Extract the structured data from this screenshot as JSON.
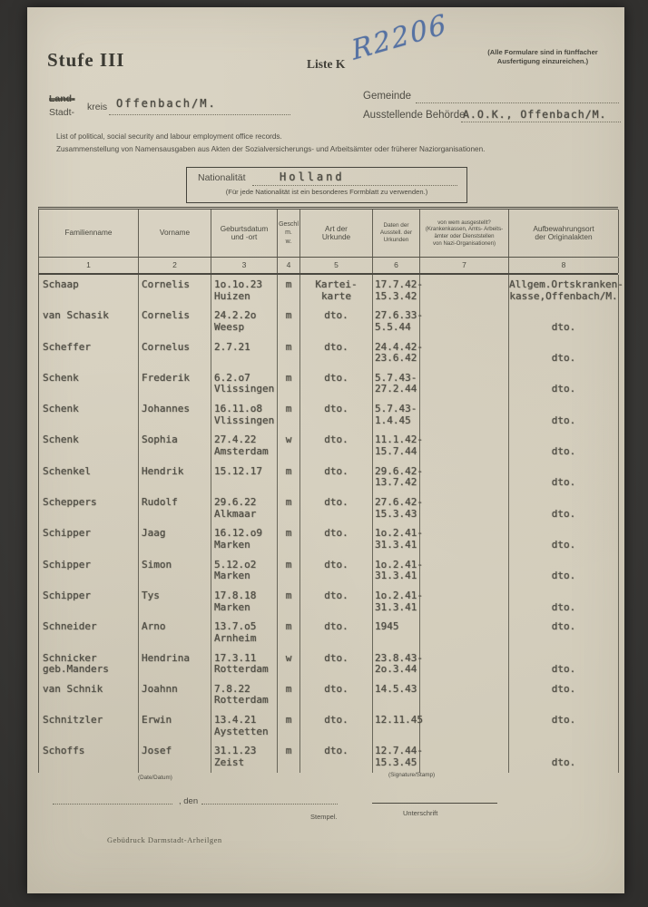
{
  "page": {
    "stufe": "Stufe III",
    "liste": "Liste K",
    "handwritten": "R2206",
    "note_top_right": "(Alle Formulare sind in fünffacher\nAusfertigung einzureichen.)"
  },
  "form": {
    "land_label": "Land-",
    "stadt_label": "Stadt-",
    "kreis_label": "kreis",
    "kreis_value": "Offenbach/M.",
    "gemeinde_label": "Gemeinde",
    "behoerde_label": "Ausstellende Behörde",
    "behoerde_value": "A.O.K., Offenbach/M.",
    "desc_en": "List of political, social security and labour employment office records.",
    "desc_de": "Zusammenstellung von Namensausgaben aus Akten der Sozialversicherungs- und Arbeitsämter oder früherer Naziorganisationen.",
    "nationality_label": "Nationalität",
    "nationality_value": "Holland",
    "nationality_note": "(Für jede Nationalität ist ein besonderes Formblatt zu verwenden.)"
  },
  "table": {
    "headers": [
      {
        "label": "Familienname",
        "num": "1"
      },
      {
        "label": "Vorname",
        "num": "2"
      },
      {
        "label": "Geburtsdatum\nund -ort",
        "num": "3"
      },
      {
        "label": "Geschl\nm.\nw.",
        "num": "4"
      },
      {
        "label": "Art der\nUrkunde",
        "num": "5"
      },
      {
        "label": "Daten der\nAusstell. der\nUrkunden",
        "num": "6"
      },
      {
        "label": "von wem ausgestellt?\n(Krankenkassen, Amts- Arbeits-\nämter oder Dienststellen\nvon Nazi-Organisationen)",
        "num": "7"
      },
      {
        "label": "Aufbewahrungsort\nder Originalakten",
        "num": "8"
      }
    ],
    "rows": [
      {
        "familienname": "Schaap",
        "vorname": "Cornelis",
        "geburt": "1o.1o.23\nHuizen",
        "geschl": "m",
        "urkunde": "Kartei-\nkarte",
        "daten": "17.7.42-\n15.3.42",
        "ausgestellt": "",
        "aufbewahrung": "Allgem.Ortskranken-\nkasse,Offenbach/M."
      },
      {
        "familienname": "van Schasik",
        "vorname": "Cornelis",
        "geburt": "24.2.2o\nWeesp",
        "geschl": "m",
        "urkunde": "dto.",
        "daten": "27.6.33-\n5.5.44",
        "ausgestellt": "",
        "aufbewahrung": "\ndto."
      },
      {
        "familienname": "Scheffer",
        "vorname": "Cornelus",
        "geburt": "2.7.21",
        "geschl": "m",
        "urkunde": "dto.",
        "daten": "24.4.42-\n23.6.42",
        "ausgestellt": "",
        "aufbewahrung": "\ndto."
      },
      {
        "familienname": "Schenk",
        "vorname": "Frederik",
        "geburt": "6.2.o7\nVlissingen",
        "geschl": "m",
        "urkunde": "dto.",
        "daten": "5.7.43-\n27.2.44",
        "ausgestellt": "",
        "aufbewahrung": "\ndto."
      },
      {
        "familienname": "Schenk",
        "vorname": "Johannes",
        "geburt": "16.11.o8\nVlissingen",
        "geschl": "m",
        "urkunde": "dto.",
        "daten": "5.7.43-\n1.4.45",
        "ausgestellt": "",
        "aufbewahrung": "\ndto."
      },
      {
        "familienname": "Schenk",
        "vorname": "Sophia",
        "geburt": "27.4.22\nAmsterdam",
        "geschl": "w",
        "urkunde": "dto.",
        "daten": "11.1.42-\n15.7.44",
        "ausgestellt": "",
        "aufbewahrung": "\ndto."
      },
      {
        "familienname": "Schenkel",
        "vorname": "Hendrik",
        "geburt": "15.12.17",
        "geschl": "m",
        "urkunde": "dto.",
        "daten": "29.6.42-\n13.7.42",
        "ausgestellt": "",
        "aufbewahrung": "\ndto."
      },
      {
        "familienname": "Scheppers",
        "vorname": "Rudolf",
        "geburt": "29.6.22\nAlkmaar",
        "geschl": "m",
        "urkunde": "dto.",
        "daten": "27.6.42-\n15.3.43",
        "ausgestellt": "",
        "aufbewahrung": "\ndto."
      },
      {
        "familienname": "Schipper",
        "vorname": "Jaag",
        "geburt": "16.12.o9\nMarken",
        "geschl": "m",
        "urkunde": "dto.",
        "daten": "1o.2.41-\n31.3.41",
        "ausgestellt": "",
        "aufbewahrung": "\ndto."
      },
      {
        "familienname": "Schipper",
        "vorname": "Simon",
        "geburt": "5.12.o2\nMarken",
        "geschl": "m",
        "urkunde": "dto.",
        "daten": "1o.2.41-\n31.3.41",
        "ausgestellt": "",
        "aufbewahrung": "\ndto."
      },
      {
        "familienname": "Schipper",
        "vorname": "Tys",
        "geburt": "17.8.18\nMarken",
        "geschl": "m",
        "urkunde": "dto.",
        "daten": "1o.2.41-\n31.3.41",
        "ausgestellt": "",
        "aufbewahrung": "\ndto."
      },
      {
        "familienname": "Schneider",
        "vorname": "Arno",
        "geburt": "13.7.o5\nArnheim",
        "geschl": "m",
        "urkunde": "dto.",
        "daten": "1945",
        "ausgestellt": "",
        "aufbewahrung": "dto."
      },
      {
        "familienname": "Schnicker\ngeb.Manders",
        "vorname": "Hendrina",
        "geburt": "17.3.11\nRotterdam",
        "geschl": "w",
        "urkunde": "dto.",
        "daten": "23.8.43-\n2o.3.44",
        "ausgestellt": "",
        "aufbewahrung": "\ndto."
      },
      {
        "familienname": "van Schnik",
        "vorname": "Joahnn",
        "geburt": "7.8.22\nRotterdam",
        "geschl": "m",
        "urkunde": "dto.",
        "daten": "14.5.43",
        "ausgestellt": "",
        "aufbewahrung": "dto."
      },
      {
        "familienname": "Schnitzler",
        "vorname": "Erwin",
        "geburt": "13.4.21\nAystetten",
        "geschl": "m",
        "urkunde": "dto.",
        "daten": "12.11.45",
        "ausgestellt": "",
        "aufbewahrung": "dto."
      },
      {
        "familienname": "Schoffs",
        "vorname": "Josef",
        "geburt": "31.1.23\nZeist",
        "geschl": "m",
        "urkunde": "dto.",
        "daten": "12.7.44-\n15.3.45",
        "ausgestellt": "",
        "aufbewahrung": "\ndto."
      }
    ]
  },
  "footer": {
    "date_label": "(Date/Datum)",
    "signature_label": "(Signature/Stamp)",
    "den_label": ", den",
    "stempel_label": "Stempel.",
    "unterschrift_label": "Unterschrift",
    "imprint": "Gebüdruck  Darmstadt-Arheilgen"
  }
}
